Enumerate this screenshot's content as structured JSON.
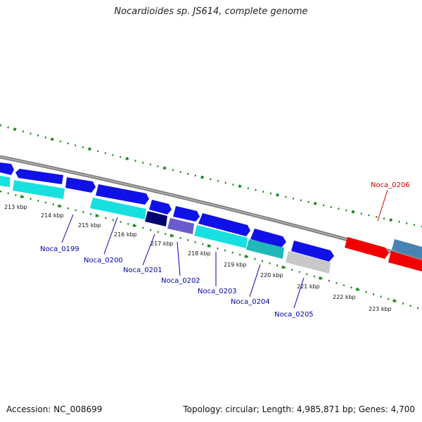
{
  "title": "Nocardioides sp. JS614, complete genome",
  "accession": "Accession: NC_008699",
  "summary": "Topology: circular; Length: 4,985,871 bp; Genes: 4,700",
  "kbp_labels": [
    "213 kbp",
    "214 kbp",
    "215 kbp",
    "216 kbp",
    "217 kbp",
    "218 kbp",
    "219 kbp",
    "220 kbp",
    "221 kbp",
    "222 kbp",
    "223 kbp"
  ],
  "gene_labels": [
    "Noca_0199",
    "Noca_0200",
    "Noca_0201",
    "Noca_0202",
    "Noca_0203",
    "Noca_0204",
    "Noca_0205",
    "Noca_0206"
  ],
  "colors": {
    "blue": "#1010e8",
    "cyan": "#18e0e0",
    "teal": "#20b8b8",
    "navy": "#000070",
    "slate": "#6a5acd",
    "gray": "#c8c8c8",
    "red": "#f00000",
    "steel": "#4682b4",
    "backbone": "#808080",
    "ticks": "#1a8a1a",
    "label_blue": "#0000aa",
    "label_red": "#cc0000"
  }
}
